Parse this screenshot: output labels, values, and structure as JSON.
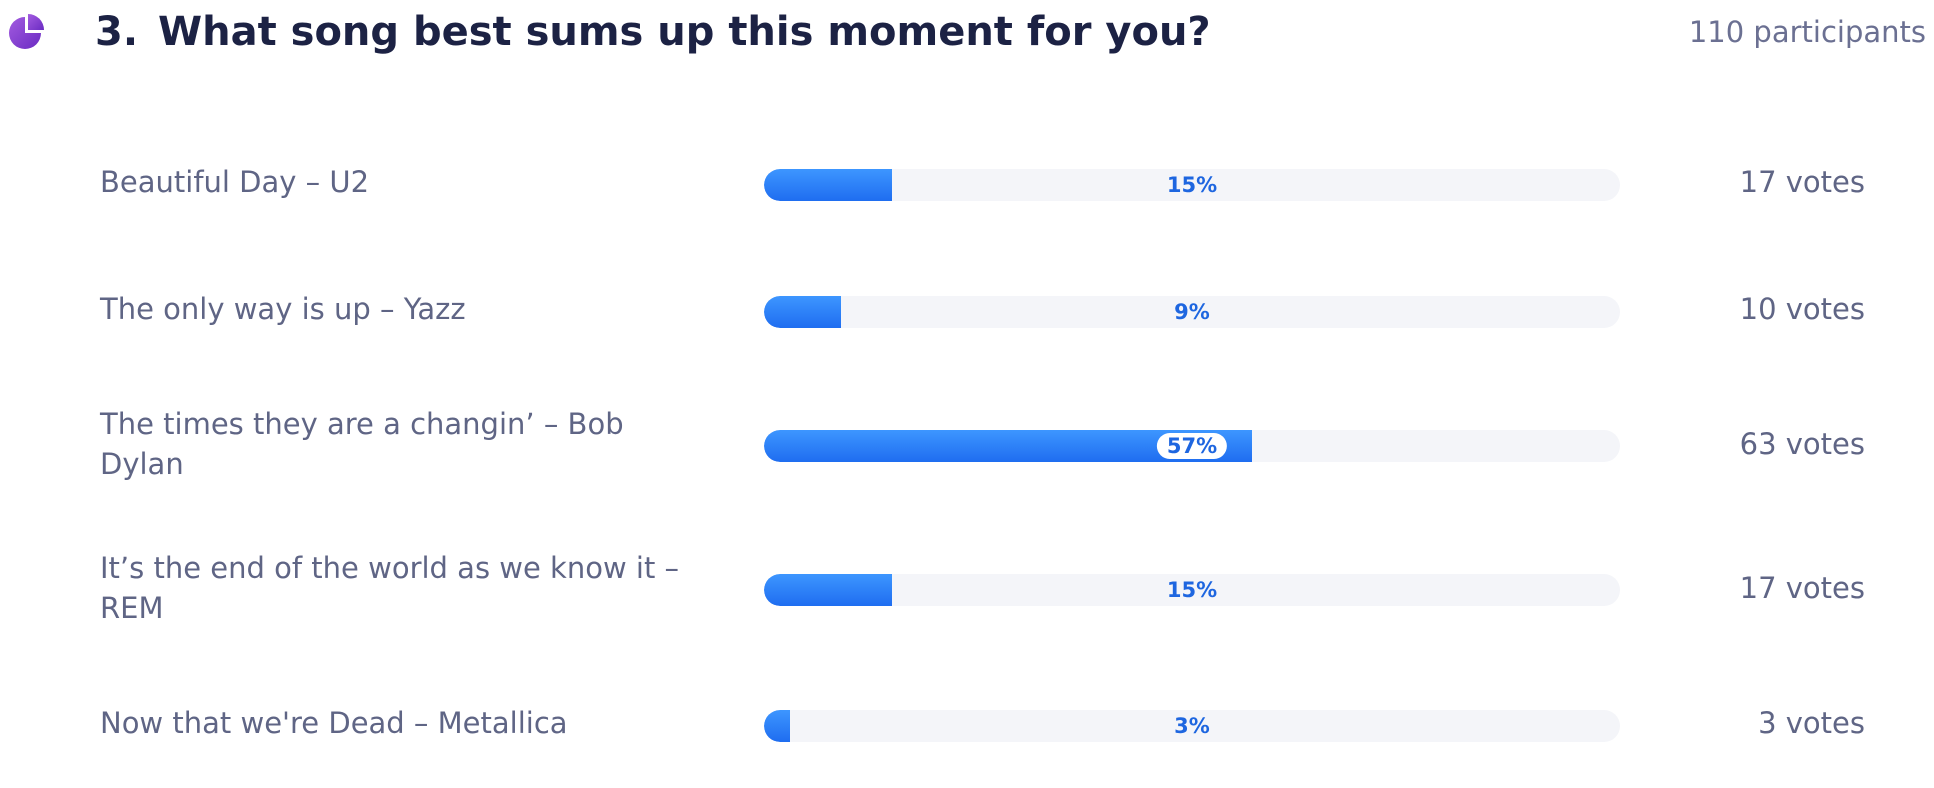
{
  "question": {
    "number": "3.",
    "title": "What song best sums up this moment for you?",
    "participants_label": "110 participants"
  },
  "colors": {
    "bar_fill": "#2b7ff8",
    "bar_track": "#f4f5f9",
    "title": "#1c2244",
    "text": "#5f6585",
    "icon": "#8a3fd1"
  },
  "options": [
    {
      "label": "Beautiful Day – U2",
      "percent_label": "15%",
      "fill_fraction": 0.15,
      "votes_label": "17 votes"
    },
    {
      "label": "The only way is up – Yazz",
      "percent_label": "9%",
      "fill_fraction": 0.09,
      "votes_label": "10 votes"
    },
    {
      "label": "The times they are a changin’ – Bob Dylan",
      "percent_label": "57%",
      "fill_fraction": 0.57,
      "votes_label": "63 votes"
    },
    {
      "label": "It’s the end of the world as we know it – REM",
      "percent_label": "15%",
      "fill_fraction": 0.15,
      "votes_label": "17 votes"
    },
    {
      "label": "Now that we're Dead – Metallica",
      "percent_label": "3%",
      "fill_fraction": 0.03,
      "votes_label": "3 votes"
    }
  ]
}
